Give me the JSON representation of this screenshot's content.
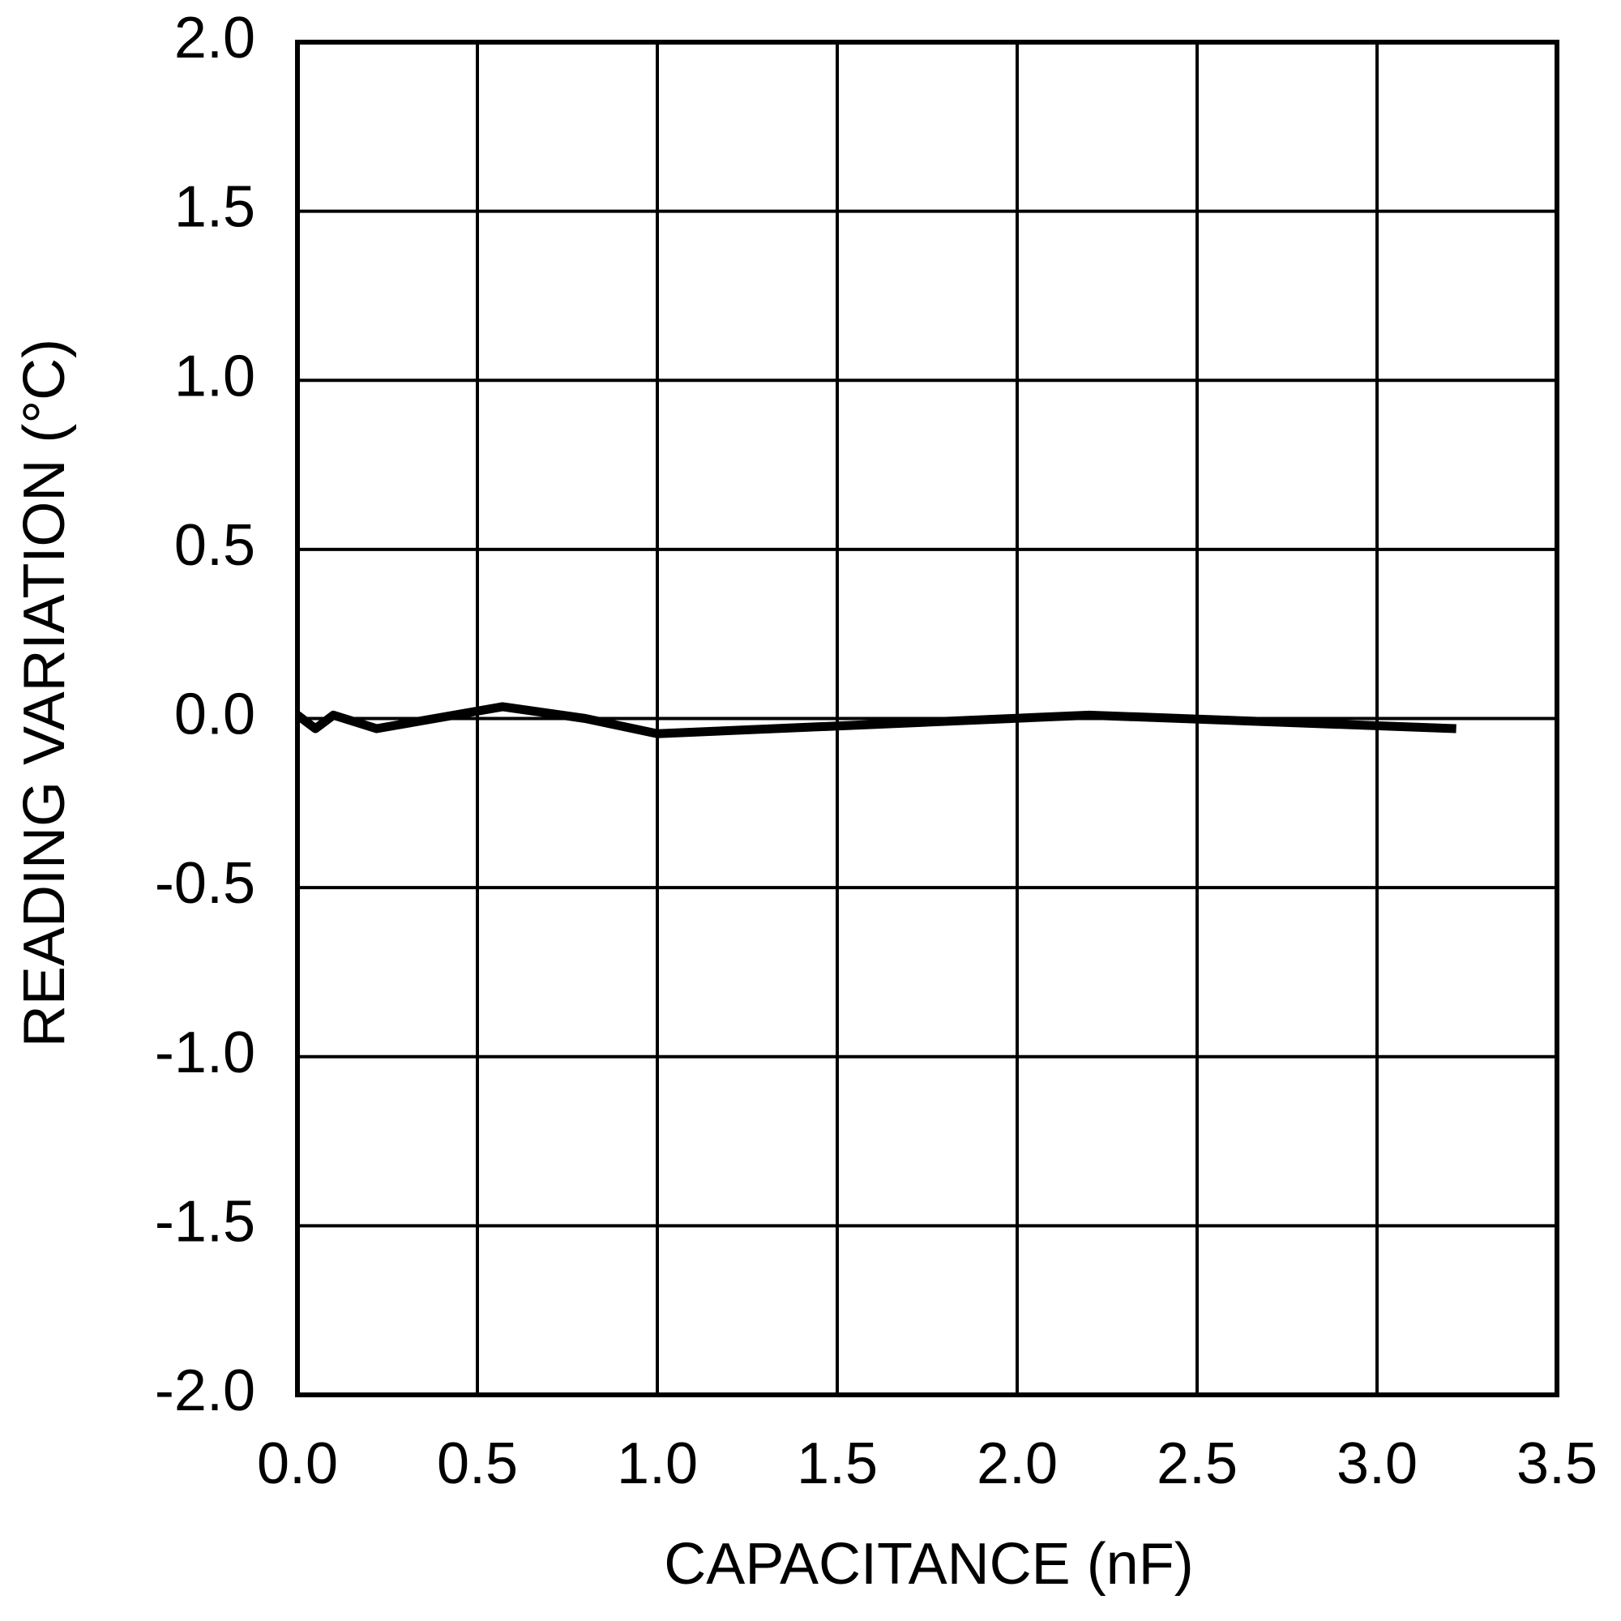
{
  "chart_data": {
    "type": "line",
    "x_label": "CAPACITANCE (nF)",
    "y_label": "READING VARIATION (°C)",
    "series": [
      {
        "color": "#000000",
        "x": [
          0,
          0.05,
          0.1,
          0.22,
          0.57,
          0.8,
          1.0,
          2.2,
          3.22
        ],
        "values": [
          0.01,
          -0.03,
          0.01,
          -0.03,
          0.035,
          0.0,
          -0.045,
          0.01,
          -0.03
        ]
      }
    ],
    "xlim": [
      0,
      3.5
    ],
    "xticks": [
      {
        "value": 0,
        "label": "0.0"
      },
      0.5,
      {
        "value": 1,
        "label": "1.0"
      },
      1.5,
      {
        "value": 2,
        "label": "2.0"
      },
      2.5,
      {
        "value": 3,
        "label": "3.0"
      },
      3.5
    ],
    "ylim": [
      -2,
      2
    ],
    "yticks": [
      {
        "value": -2,
        "label": "-2.0"
      },
      -1.5,
      {
        "value": -1,
        "label": "-1.0"
      },
      -0.5,
      {
        "value": 0,
        "label": "0.0"
      },
      0.5,
      {
        "value": 1,
        "label": "1.0"
      },
      1.5,
      {
        "value": 2,
        "label": "2.0"
      }
    ],
    "grid": true
  }
}
